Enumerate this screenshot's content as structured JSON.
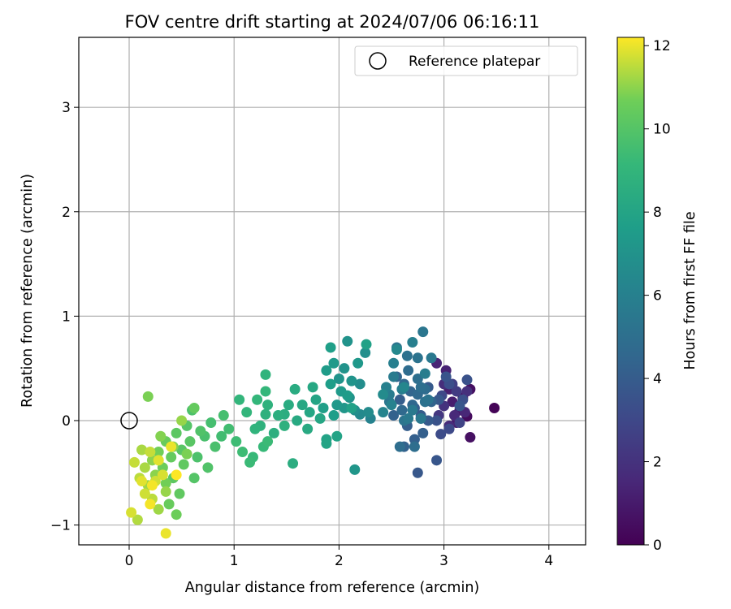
{
  "chart_data": {
    "type": "scatter",
    "title": "FOV centre drift starting at 2024/07/06 06:16:11",
    "xlabel": "Angular distance from reference (arcmin)",
    "ylabel": "Rotation from reference (arcmin)",
    "xlim": [
      -0.48,
      4.35
    ],
    "ylim": [
      -1.19,
      3.67
    ],
    "xticks": [
      0,
      1,
      2,
      3,
      4
    ],
    "yticks": [
      -1,
      0,
      1,
      2,
      3
    ],
    "grid": true,
    "legend": {
      "placement": "top-right",
      "entries": [
        "Reference platepar"
      ]
    },
    "reference_point": {
      "x": 0,
      "y": 0
    },
    "colorbar": {
      "label": "Hours from first FF file",
      "colormap": "viridis",
      "range": [
        0,
        12.2
      ],
      "ticks": [
        0,
        2,
        4,
        6,
        8,
        10,
        12
      ]
    },
    "points": [
      [
        3.48,
        0.12,
        0.1
      ],
      [
        3.22,
        0.04,
        0.4
      ],
      [
        3.25,
        0.3,
        0.5
      ],
      [
        3.25,
        -0.16,
        0.6
      ],
      [
        3.18,
        0.22,
        0.7
      ],
      [
        3.15,
        0.1,
        0.8
      ],
      [
        3.12,
        -0.02,
        1.0
      ],
      [
        3.08,
        0.18,
        1.1
      ],
      [
        3.05,
        0.3,
        1.2
      ],
      [
        3.02,
        0.48,
        1.3
      ],
      [
        2.93,
        0.55,
        1.4
      ],
      [
        3.2,
        0.08,
        1.5
      ],
      [
        3.1,
        0.05,
        1.6
      ],
      [
        3.05,
        -0.05,
        1.7
      ],
      [
        3.0,
        0.35,
        1.8
      ],
      [
        3.22,
        0.28,
        1.9
      ],
      [
        3.0,
        0.14,
        2.0
      ],
      [
        2.95,
        0.05,
        2.2
      ],
      [
        3.12,
        0.28,
        2.4
      ],
      [
        3.08,
        0.35,
        2.6
      ],
      [
        3.15,
        -0.02,
        2.8
      ],
      [
        2.98,
        0.24,
        3.0
      ],
      [
        3.05,
        -0.08,
        3.1
      ],
      [
        2.97,
        -0.13,
        3.2
      ],
      [
        3.05,
        0.35,
        3.3
      ],
      [
        3.18,
        0.2,
        3.4
      ],
      [
        3.22,
        0.39,
        3.5
      ],
      [
        2.93,
        0.0,
        3.5
      ],
      [
        3.02,
        0.42,
        3.6
      ],
      [
        3.15,
        0.14,
        3.7
      ],
      [
        2.93,
        -0.38,
        3.7
      ],
      [
        2.75,
        -0.5,
        3.8
      ],
      [
        2.95,
        0.2,
        3.8
      ],
      [
        2.85,
        0.0,
        3.9
      ],
      [
        2.85,
        0.32,
        3.9
      ],
      [
        2.72,
        0.12,
        4.0
      ],
      [
        2.78,
        0.05,
        4.0
      ],
      [
        2.65,
        -0.05,
        4.1
      ],
      [
        2.58,
        0.2,
        4.1
      ],
      [
        2.72,
        -0.18,
        4.2
      ],
      [
        2.8,
        -0.12,
        4.2
      ],
      [
        2.62,
        -0.25,
        4.3
      ],
      [
        2.52,
        0.05,
        4.3
      ],
      [
        2.88,
        0.18,
        4.4
      ],
      [
        2.78,
        0.02,
        4.4
      ],
      [
        2.68,
        0.28,
        4.5
      ],
      [
        2.55,
        0.42,
        4.5
      ],
      [
        2.62,
        0.35,
        4.6
      ],
      [
        2.7,
        0.15,
        4.6
      ],
      [
        2.75,
        0.25,
        4.7
      ],
      [
        2.6,
        0.1,
        4.7
      ],
      [
        2.82,
        0.3,
        4.8
      ],
      [
        2.66,
        0.48,
        4.8
      ],
      [
        2.58,
        -0.25,
        4.9
      ],
      [
        2.72,
        -0.25,
        4.9
      ],
      [
        2.75,
        0.4,
        5.0
      ],
      [
        2.78,
        0.32,
        5.0
      ],
      [
        2.65,
        0.62,
        5.1
      ],
      [
        2.82,
        0.18,
        5.1
      ],
      [
        2.75,
        0.6,
        5.2
      ],
      [
        2.85,
        0.2,
        5.2
      ],
      [
        2.55,
        0.7,
        5.3
      ],
      [
        2.62,
        0.0,
        5.3
      ],
      [
        2.48,
        0.18,
        5.4
      ],
      [
        2.8,
        0.85,
        5.4
      ],
      [
        2.88,
        0.6,
        5.5
      ],
      [
        2.78,
        0.02,
        5.5
      ],
      [
        2.7,
        0.1,
        5.6
      ],
      [
        2.66,
        0.02,
        5.6
      ],
      [
        2.52,
        0.42,
        5.7
      ],
      [
        2.48,
        0.25,
        5.7
      ],
      [
        2.82,
        0.45,
        5.8
      ],
      [
        2.6,
        0.3,
        5.8
      ],
      [
        2.7,
        0.75,
        5.9
      ],
      [
        2.52,
        0.55,
        5.9
      ],
      [
        2.45,
        0.32,
        6.0
      ],
      [
        2.3,
        0.02,
        6.1
      ],
      [
        2.5,
        0.15,
        6.1
      ],
      [
        2.42,
        0.08,
        6.2
      ],
      [
        2.62,
        0.32,
        6.3
      ],
      [
        2.55,
        0.68,
        6.4
      ],
      [
        2.2,
        0.06,
        6.5
      ],
      [
        2.42,
        0.25,
        6.6
      ],
      [
        2.28,
        0.08,
        6.6
      ],
      [
        2.2,
        0.35,
        6.7
      ],
      [
        2.15,
        0.1,
        6.8
      ],
      [
        2.25,
        0.65,
        6.8
      ],
      [
        2.1,
        0.22,
        6.9
      ],
      [
        2.05,
        0.5,
        7.0
      ],
      [
        2.08,
        0.76,
        7.0
      ],
      [
        2.0,
        0.4,
        7.1
      ],
      [
        2.12,
        0.38,
        7.1
      ],
      [
        2.15,
        -0.47,
        7.2
      ],
      [
        2.05,
        0.12,
        7.2
      ],
      [
        2.18,
        0.55,
        7.3
      ],
      [
        1.98,
        0.15,
        7.3
      ],
      [
        1.95,
        0.55,
        7.4
      ],
      [
        2.02,
        0.28,
        7.4
      ],
      [
        1.88,
        0.48,
        7.5
      ],
      [
        2.08,
        0.24,
        7.5
      ],
      [
        1.92,
        0.35,
        7.6
      ],
      [
        1.95,
        0.05,
        7.6
      ],
      [
        1.85,
        0.12,
        7.7
      ],
      [
        1.92,
        0.7,
        7.7
      ],
      [
        2.26,
        0.73,
        7.8
      ],
      [
        2.12,
        0.12,
        7.8
      ],
      [
        1.88,
        -0.18,
        7.9
      ],
      [
        1.98,
        -0.15,
        7.9
      ],
      [
        1.78,
        0.2,
        8.0
      ],
      [
        1.88,
        -0.22,
        8.0
      ],
      [
        1.72,
        0.08,
        8.1
      ],
      [
        1.82,
        0.02,
        8.1
      ],
      [
        1.75,
        0.32,
        8.2
      ],
      [
        1.65,
        0.15,
        8.2
      ],
      [
        1.7,
        -0.08,
        8.3
      ],
      [
        1.6,
        0.0,
        8.3
      ],
      [
        1.58,
        0.3,
        8.4
      ],
      [
        1.52,
        0.15,
        8.4
      ],
      [
        1.56,
        -0.41,
        8.5
      ],
      [
        1.48,
        0.06,
        8.5
      ],
      [
        1.42,
        0.05,
        8.6
      ],
      [
        1.38,
        -0.12,
        8.6
      ],
      [
        1.48,
        -0.05,
        8.7
      ],
      [
        1.3,
        0.06,
        8.7
      ],
      [
        1.25,
        -0.05,
        8.8
      ],
      [
        1.32,
        0.15,
        8.8
      ],
      [
        1.2,
        -0.08,
        8.9
      ],
      [
        1.3,
        0.44,
        8.9
      ],
      [
        1.12,
        0.08,
        9.0
      ],
      [
        1.05,
        0.2,
        9.0
      ],
      [
        1.22,
        0.2,
        9.1
      ],
      [
        1.3,
        0.28,
        9.1
      ],
      [
        1.18,
        -0.35,
        9.2
      ],
      [
        1.28,
        -0.25,
        9.2
      ],
      [
        1.15,
        -0.4,
        9.3
      ],
      [
        1.32,
        -0.2,
        9.3
      ],
      [
        1.08,
        -0.3,
        9.4
      ],
      [
        1.02,
        -0.2,
        9.4
      ],
      [
        0.95,
        -0.08,
        9.5
      ],
      [
        0.88,
        -0.15,
        9.5
      ],
      [
        0.9,
        0.05,
        9.6
      ],
      [
        0.78,
        -0.02,
        9.6
      ],
      [
        0.82,
        -0.25,
        9.7
      ],
      [
        0.72,
        -0.15,
        9.7
      ],
      [
        0.65,
        -0.35,
        9.8
      ],
      [
        0.6,
        0.1,
        9.8
      ],
      [
        0.75,
        -0.45,
        9.9
      ],
      [
        0.68,
        -0.1,
        9.9
      ],
      [
        0.55,
        -0.05,
        10.0
      ],
      [
        0.62,
        -0.55,
        10.0
      ],
      [
        0.5,
        -0.28,
        10.1
      ],
      [
        0.58,
        -0.2,
        10.1
      ],
      [
        0.45,
        -0.12,
        10.2
      ],
      [
        0.42,
        -0.55,
        10.2
      ],
      [
        0.52,
        -0.42,
        10.3
      ],
      [
        0.48,
        -0.7,
        10.3
      ],
      [
        0.62,
        0.12,
        10.4
      ],
      [
        0.4,
        -0.35,
        10.4
      ],
      [
        0.35,
        -0.2,
        10.5
      ],
      [
        0.38,
        -0.8,
        10.5
      ],
      [
        0.32,
        -0.45,
        10.6
      ],
      [
        0.45,
        -0.9,
        10.6
      ],
      [
        0.28,
        -0.3,
        10.7
      ],
      [
        0.35,
        -0.6,
        10.7
      ],
      [
        0.55,
        -0.32,
        10.8
      ],
      [
        0.18,
        0.23,
        10.8
      ],
      [
        0.3,
        -0.15,
        10.9
      ],
      [
        0.42,
        -0.25,
        10.9
      ],
      [
        0.25,
        -0.52,
        11.0
      ],
      [
        0.22,
        -0.38,
        11.0
      ],
      [
        0.5,
        0.0,
        11.1
      ],
      [
        0.35,
        -0.68,
        11.1
      ],
      [
        0.18,
        -0.62,
        11.2
      ],
      [
        0.28,
        -0.85,
        11.2
      ],
      [
        0.15,
        -0.45,
        11.3
      ],
      [
        0.12,
        -0.28,
        11.3
      ],
      [
        0.08,
        -0.95,
        11.4
      ],
      [
        0.22,
        -0.75,
        11.5
      ],
      [
        0.1,
        -0.55,
        11.5
      ],
      [
        0.05,
        -0.4,
        11.6
      ],
      [
        0.2,
        -0.3,
        11.6
      ],
      [
        0.25,
        -0.58,
        11.7
      ],
      [
        0.15,
        -0.7,
        11.7
      ],
      [
        0.02,
        -0.88,
        11.8
      ],
      [
        0.32,
        -0.52,
        11.8
      ],
      [
        0.12,
        -0.58,
        11.9
      ],
      [
        0.28,
        -0.38,
        11.9
      ],
      [
        0.4,
        -0.25,
        12.0
      ],
      [
        0.35,
        -1.08,
        12.0
      ],
      [
        0.2,
        -0.8,
        12.1
      ],
      [
        0.22,
        -0.62,
        12.1
      ],
      [
        0.45,
        -0.52,
        12.2
      ]
    ]
  }
}
